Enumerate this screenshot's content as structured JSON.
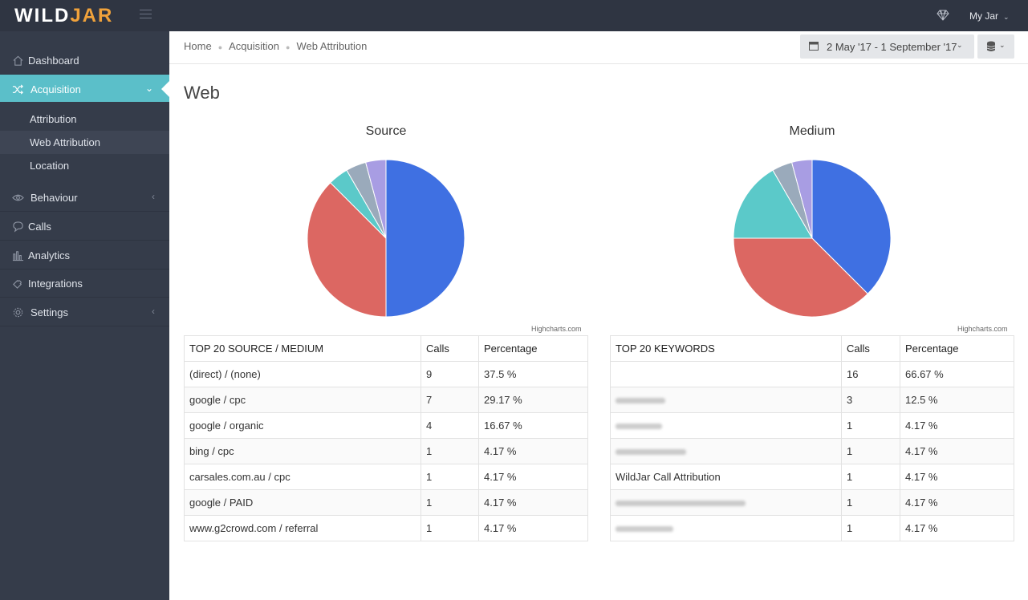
{
  "app": {
    "logo_main": "WILD",
    "logo_accent": "JAR",
    "user_menu": "My Jar"
  },
  "sidebar": {
    "items": [
      {
        "label": "Dashboard",
        "icon": "home-icon"
      },
      {
        "label": "Acquisition",
        "icon": "shuffle-icon"
      },
      {
        "label": "Behaviour",
        "icon": "eye-icon"
      },
      {
        "label": "Calls",
        "icon": "chat-icon"
      },
      {
        "label": "Analytics",
        "icon": "bar-chart-icon"
      },
      {
        "label": "Integrations",
        "icon": "puzzle-icon"
      },
      {
        "label": "Settings",
        "icon": "gear-icon"
      }
    ],
    "sub_items": [
      "Attribution",
      "Web Attribution",
      "Location"
    ]
  },
  "breadcrumb": [
    "Home",
    "Acquisition",
    "Web Attribution"
  ],
  "date_range": "2 May '17 - 1 September '17",
  "page_title": "Web",
  "charts": {
    "credit": "Highcharts.com"
  },
  "chart_data": [
    {
      "type": "pie",
      "title": "Source",
      "slices": [
        {
          "value": 50.0,
          "color": "#3f70e2"
        },
        {
          "value": 37.5,
          "color": "#dc6762"
        },
        {
          "value": 4.17,
          "color": "#5bc9c9"
        },
        {
          "value": 4.17,
          "color": "#9aaabb"
        },
        {
          "value": 4.17,
          "color": "#a89de3"
        }
      ]
    },
    {
      "type": "pie",
      "title": "Medium",
      "slices": [
        {
          "value": 37.5,
          "color": "#3f70e2"
        },
        {
          "value": 37.5,
          "color": "#dc6762"
        },
        {
          "value": 16.67,
          "color": "#5bc9c9"
        },
        {
          "value": 4.17,
          "color": "#9aaabb"
        },
        {
          "value": 4.17,
          "color": "#a89de3"
        }
      ]
    }
  ],
  "source_table": {
    "headers": [
      "TOP 20 SOURCE / MEDIUM",
      "Calls",
      "Percentage"
    ],
    "rows": [
      [
        "(direct) / (none)",
        "9",
        "37.5 %"
      ],
      [
        "google / cpc",
        "7",
        "29.17 %"
      ],
      [
        "google / organic",
        "4",
        "16.67 %"
      ],
      [
        "bing / cpc",
        "1",
        "4.17 %"
      ],
      [
        "carsales.com.au / cpc",
        "1",
        "4.17 %"
      ],
      [
        "google / PAID",
        "1",
        "4.17 %"
      ],
      [
        "www.g2crowd.com / referral",
        "1",
        "4.17 %"
      ]
    ]
  },
  "keywords_table": {
    "headers": [
      "TOP 20 KEYWORDS",
      "Calls",
      "Percentage"
    ],
    "rows": [
      [
        "",
        "16",
        "66.67 %"
      ],
      [
        "",
        "3",
        "12.5 %"
      ],
      [
        "",
        "1",
        "4.17 %"
      ],
      [
        "",
        "1",
        "4.17 %"
      ],
      [
        "WildJar Call Attribution",
        "1",
        "4.17 %"
      ],
      [
        "",
        "1",
        "4.17 %"
      ],
      [
        "",
        "1",
        "4.17 %"
      ]
    ]
  }
}
